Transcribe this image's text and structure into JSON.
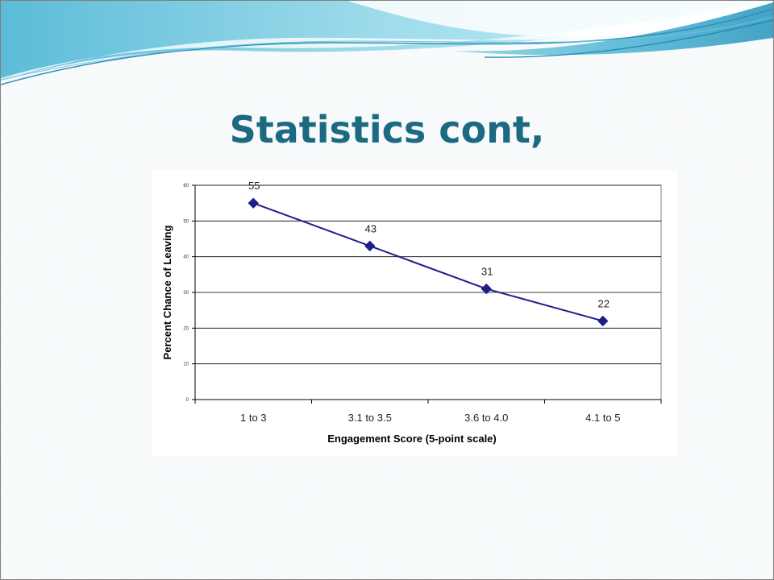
{
  "slide": {
    "title": "Statistics cont,"
  },
  "colors": {
    "title": "#1b6a82",
    "banner_light": "#bfe9f2",
    "banner_mid": "#7fd0e3",
    "banner_dark": "#3aa7c6",
    "series": "#1f1f8c"
  },
  "chart_data": {
    "type": "line",
    "categories": [
      "1 to 3",
      "3.1 to 3.5",
      "3.6 to 4.0",
      "4.1 to 5"
    ],
    "series": [
      {
        "values": [
          55,
          43,
          31,
          22
        ]
      }
    ],
    "data_labels": [
      "55",
      "43",
      "31",
      "22"
    ],
    "xlabel": "Engagement Score (5-point scale)",
    "ylabel": "Percent Chance of Leaving",
    "ylim": [
      0,
      60
    ],
    "yticks": [
      "0",
      "10",
      "20",
      "30",
      "40",
      "50",
      "60"
    ],
    "grid": true,
    "legend": false,
    "marker": "diamond"
  }
}
